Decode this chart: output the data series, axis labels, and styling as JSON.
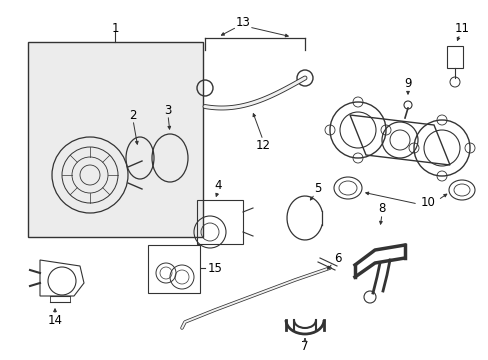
{
  "bg_color": "#ffffff",
  "line_color": "#333333",
  "label_color": "#000000",
  "box_fill": "#ececec",
  "figsize": [
    4.89,
    3.6
  ],
  "dpi": 100
}
